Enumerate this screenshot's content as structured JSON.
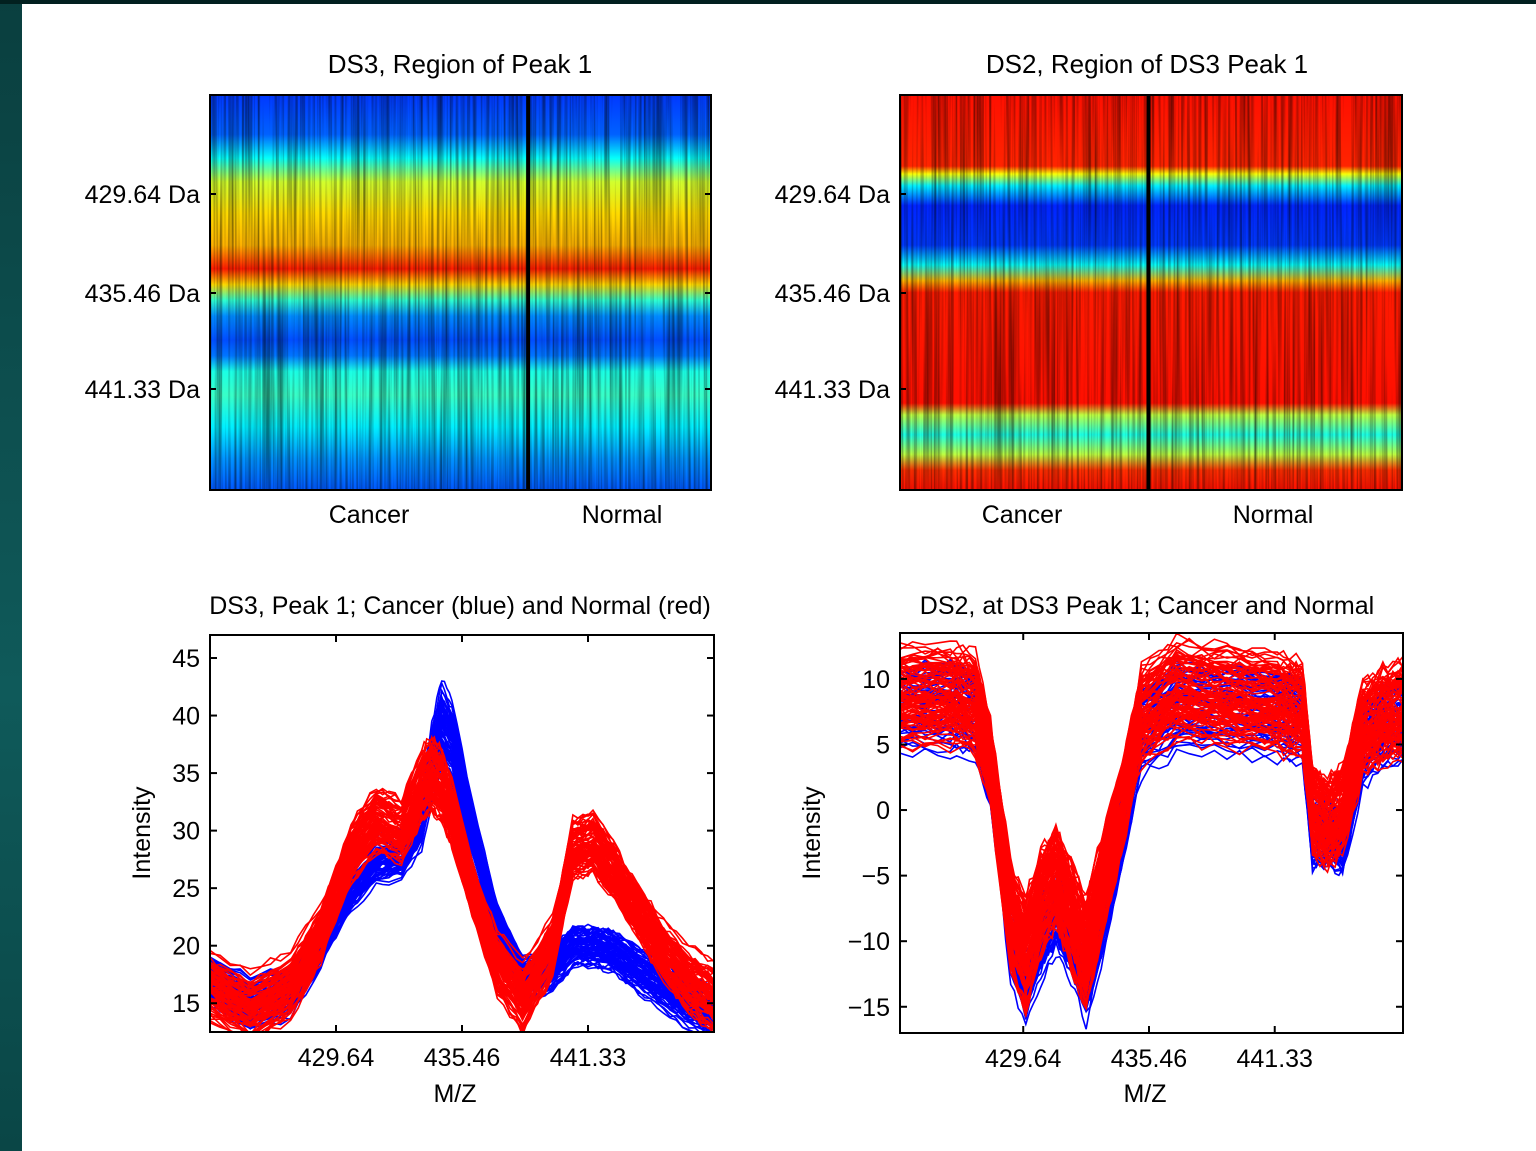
{
  "chart_data": [
    {
      "type": "heatmap",
      "title": "DS3, Region of Peak 1",
      "colormap": "jet",
      "yticks": [
        "429.64 Da",
        "435.46 Da",
        "441.33 Da"
      ],
      "xlabels": [
        "Cancer",
        "Normal"
      ],
      "group_divider_fraction": 0.635,
      "rows": [
        {
          "frac": 0.0,
          "level": 0.18
        },
        {
          "frac": 0.1,
          "level": 0.22
        },
        {
          "frac": 0.16,
          "level": 0.38
        },
        {
          "frac": 0.22,
          "level": 0.58
        },
        {
          "frac": 0.3,
          "level": 0.66
        },
        {
          "frac": 0.38,
          "level": 0.7
        },
        {
          "frac": 0.44,
          "level": 0.85
        },
        {
          "frac": 0.48,
          "level": 0.66
        },
        {
          "frac": 0.52,
          "level": 0.42
        },
        {
          "frac": 0.56,
          "level": 0.26
        },
        {
          "frac": 0.62,
          "level": 0.2
        },
        {
          "frac": 0.66,
          "level": 0.24
        },
        {
          "frac": 0.7,
          "level": 0.4
        },
        {
          "frac": 0.76,
          "level": 0.43
        },
        {
          "frac": 0.84,
          "level": 0.36
        },
        {
          "frac": 0.92,
          "level": 0.27
        },
        {
          "frac": 1.0,
          "level": 0.21
        }
      ]
    },
    {
      "type": "heatmap",
      "title": "DS2, Region of DS3 Peak 1",
      "colormap": "jet",
      "yticks": [
        "429.64 Da",
        "435.46 Da",
        "441.33 Da"
      ],
      "xlabels": [
        "Cancer",
        "Normal"
      ],
      "group_divider_fraction": 0.495,
      "rows": [
        {
          "frac": 0.0,
          "level": 0.86
        },
        {
          "frac": 0.18,
          "level": 0.84
        },
        {
          "frac": 0.2,
          "level": 0.62
        },
        {
          "frac": 0.23,
          "level": 0.36
        },
        {
          "frac": 0.28,
          "level": 0.16
        },
        {
          "frac": 0.38,
          "level": 0.18
        },
        {
          "frac": 0.43,
          "level": 0.38
        },
        {
          "frac": 0.47,
          "level": 0.7
        },
        {
          "frac": 0.5,
          "level": 0.85
        },
        {
          "frac": 0.78,
          "level": 0.86
        },
        {
          "frac": 0.81,
          "level": 0.56
        },
        {
          "frac": 0.86,
          "level": 0.4
        },
        {
          "frac": 0.91,
          "level": 0.56
        },
        {
          "frac": 0.95,
          "level": 0.83
        },
        {
          "frac": 1.0,
          "level": 0.86
        }
      ]
    },
    {
      "type": "line",
      "title": "DS3, Peak 1; Cancer (blue) and Normal (red)",
      "xlabel": "M/Z",
      "ylabel": "Intensity",
      "xticks": [
        "429.64",
        "435.46",
        "441.33"
      ],
      "yticks": [
        15,
        20,
        25,
        30,
        35,
        40,
        45
      ],
      "xlim": [
        0,
        100
      ],
      "ylim": [
        12.5,
        47
      ],
      "series": [
        {
          "color": "#0000ff",
          "count": 70,
          "x": [
            0,
            8,
            16,
            22,
            28,
            33,
            38,
            42,
            44,
            46,
            48,
            52,
            57,
            62,
            68,
            72,
            76,
            80,
            85,
            90,
            95,
            100
          ],
          "y": [
            17,
            15,
            16,
            20,
            25,
            27.5,
            28,
            31,
            36,
            39.5,
            38,
            30,
            22,
            17,
            18,
            20,
            20,
            19.5,
            18,
            16.5,
            15,
            14
          ],
          "spread": 1.6
        },
        {
          "color": "#ff0000",
          "count": 85,
          "x": [
            0,
            8,
            16,
            22,
            28,
            33,
            38,
            42,
            44,
            46,
            48,
            52,
            57,
            62,
            68,
            72,
            76,
            80,
            85,
            90,
            95,
            100
          ],
          "y": [
            16.5,
            14.5,
            16.5,
            21,
            28,
            31,
            30,
            34,
            35,
            34,
            31.5,
            25,
            18.5,
            15.5,
            20,
            28.5,
            29,
            26.5,
            23,
            19.5,
            17,
            15.5
          ],
          "spread": 2.2
        }
      ]
    },
    {
      "type": "line",
      "title": "DS2, at DS3 Peak 1; Cancer and Normal",
      "xlabel": "M/Z",
      "ylabel": "Intensity",
      "xticks": [
        "429.64",
        "435.46",
        "441.33"
      ],
      "yticks": [
        -15,
        -10,
        -5,
        0,
        5,
        10
      ],
      "xlim": [
        0,
        100
      ],
      "ylim": [
        -17,
        13.5
      ],
      "series": [
        {
          "color": "#0000ff",
          "count": 50,
          "x": [
            0,
            10,
            15,
            18,
            22,
            25,
            28,
            31,
            34,
            37,
            40,
            44,
            48,
            55,
            65,
            75,
            80,
            82,
            85,
            88,
            92,
            96,
            100
          ],
          "y": [
            8,
            8,
            7.5,
            3,
            -10,
            -13,
            -10,
            -8,
            -10,
            -13,
            -9,
            -2,
            6,
            8,
            8,
            7.5,
            7,
            -2,
            -1.5,
            -2.5,
            5,
            6.5,
            7
          ],
          "spread": 2.6
        },
        {
          "color": "#ff0000",
          "count": 95,
          "x": [
            0,
            10,
            15,
            18,
            22,
            25,
            28,
            31,
            34,
            37,
            40,
            44,
            48,
            55,
            65,
            75,
            80,
            82,
            85,
            88,
            92,
            96,
            100
          ],
          "y": [
            8.5,
            8.5,
            8,
            3.5,
            -8,
            -11,
            -7,
            -5,
            -8,
            -11,
            -6,
            0,
            7,
            9,
            8.5,
            8,
            7.5,
            0,
            -1,
            0,
            6,
            7,
            7.5
          ],
          "spread": 3.2
        }
      ]
    }
  ]
}
